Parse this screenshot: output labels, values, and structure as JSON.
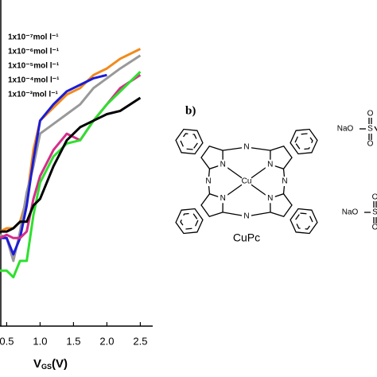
{
  "chart_data": {
    "type": "line",
    "x_label": {
      "main": "V",
      "sub": "GS",
      "unit": "(V)"
    },
    "x": [
      0.4,
      0.5,
      0.6,
      0.7,
      0.8,
      0.9,
      1.0,
      1.2,
      1.4,
      1.6,
      1.8,
      2.0,
      2.2,
      2.5
    ],
    "xlim": [
      0.4,
      2.6
    ],
    "xticks": [
      0.5,
      {
        "value": 1.0,
        "label": "1.0"
      },
      1.5,
      {
        "value": 2.0,
        "label": "2.0"
      },
      2.5
    ],
    "ylim": [
      0,
      100
    ],
    "series": [
      {
        "name": "1x10⁻⁷mol l⁻¹",
        "color": "#f28a1c",
        "values": [
          29,
          30,
          30,
          32,
          39,
          54,
          63,
          67,
          71,
          73,
          77,
          79,
          82,
          85
        ]
      },
      {
        "name": "1x10⁻⁶mol l⁻¹",
        "color": "#999999",
        "values": [
          28,
          27,
          20,
          29,
          41,
          49,
          59,
          62,
          65,
          68,
          73,
          76,
          79,
          83
        ]
      },
      {
        "name": "1x10⁻⁵mol l⁻¹",
        "color": "#1c1cd6",
        "values": [
          27,
          27,
          22,
          27,
          37,
          51,
          63,
          68,
          72,
          74,
          76,
          77,
          null,
          null
        ]
      },
      {
        "name": "1x10⁻⁴mol l⁻¹",
        "color": "#d62d8a",
        "values": [
          27,
          28,
          27,
          27,
          29,
          39,
          46,
          54,
          59,
          57,
          63,
          68,
          73,
          77
        ]
      },
      {
        "name": "1x10⁻³mol l⁻¹",
        "color": "#2ee02e",
        "values": [
          17,
          17,
          15,
          20,
          20,
          34,
          44,
          52,
          56,
          57,
          63,
          68,
          72,
          78
        ]
      },
      {
        "color": "#000000",
        "values": [
          29,
          29,
          30,
          32,
          32,
          37,
          39,
          49,
          57,
          61,
          63,
          65,
          66,
          70
        ]
      }
    ]
  },
  "structure": {
    "panel": "b)",
    "nitrogen": "N",
    "metal": "Cu",
    "name": "CuPc",
    "fragment": {
      "sodium": "NaO",
      "sulfur": "S",
      "oxygen": "O"
    }
  }
}
